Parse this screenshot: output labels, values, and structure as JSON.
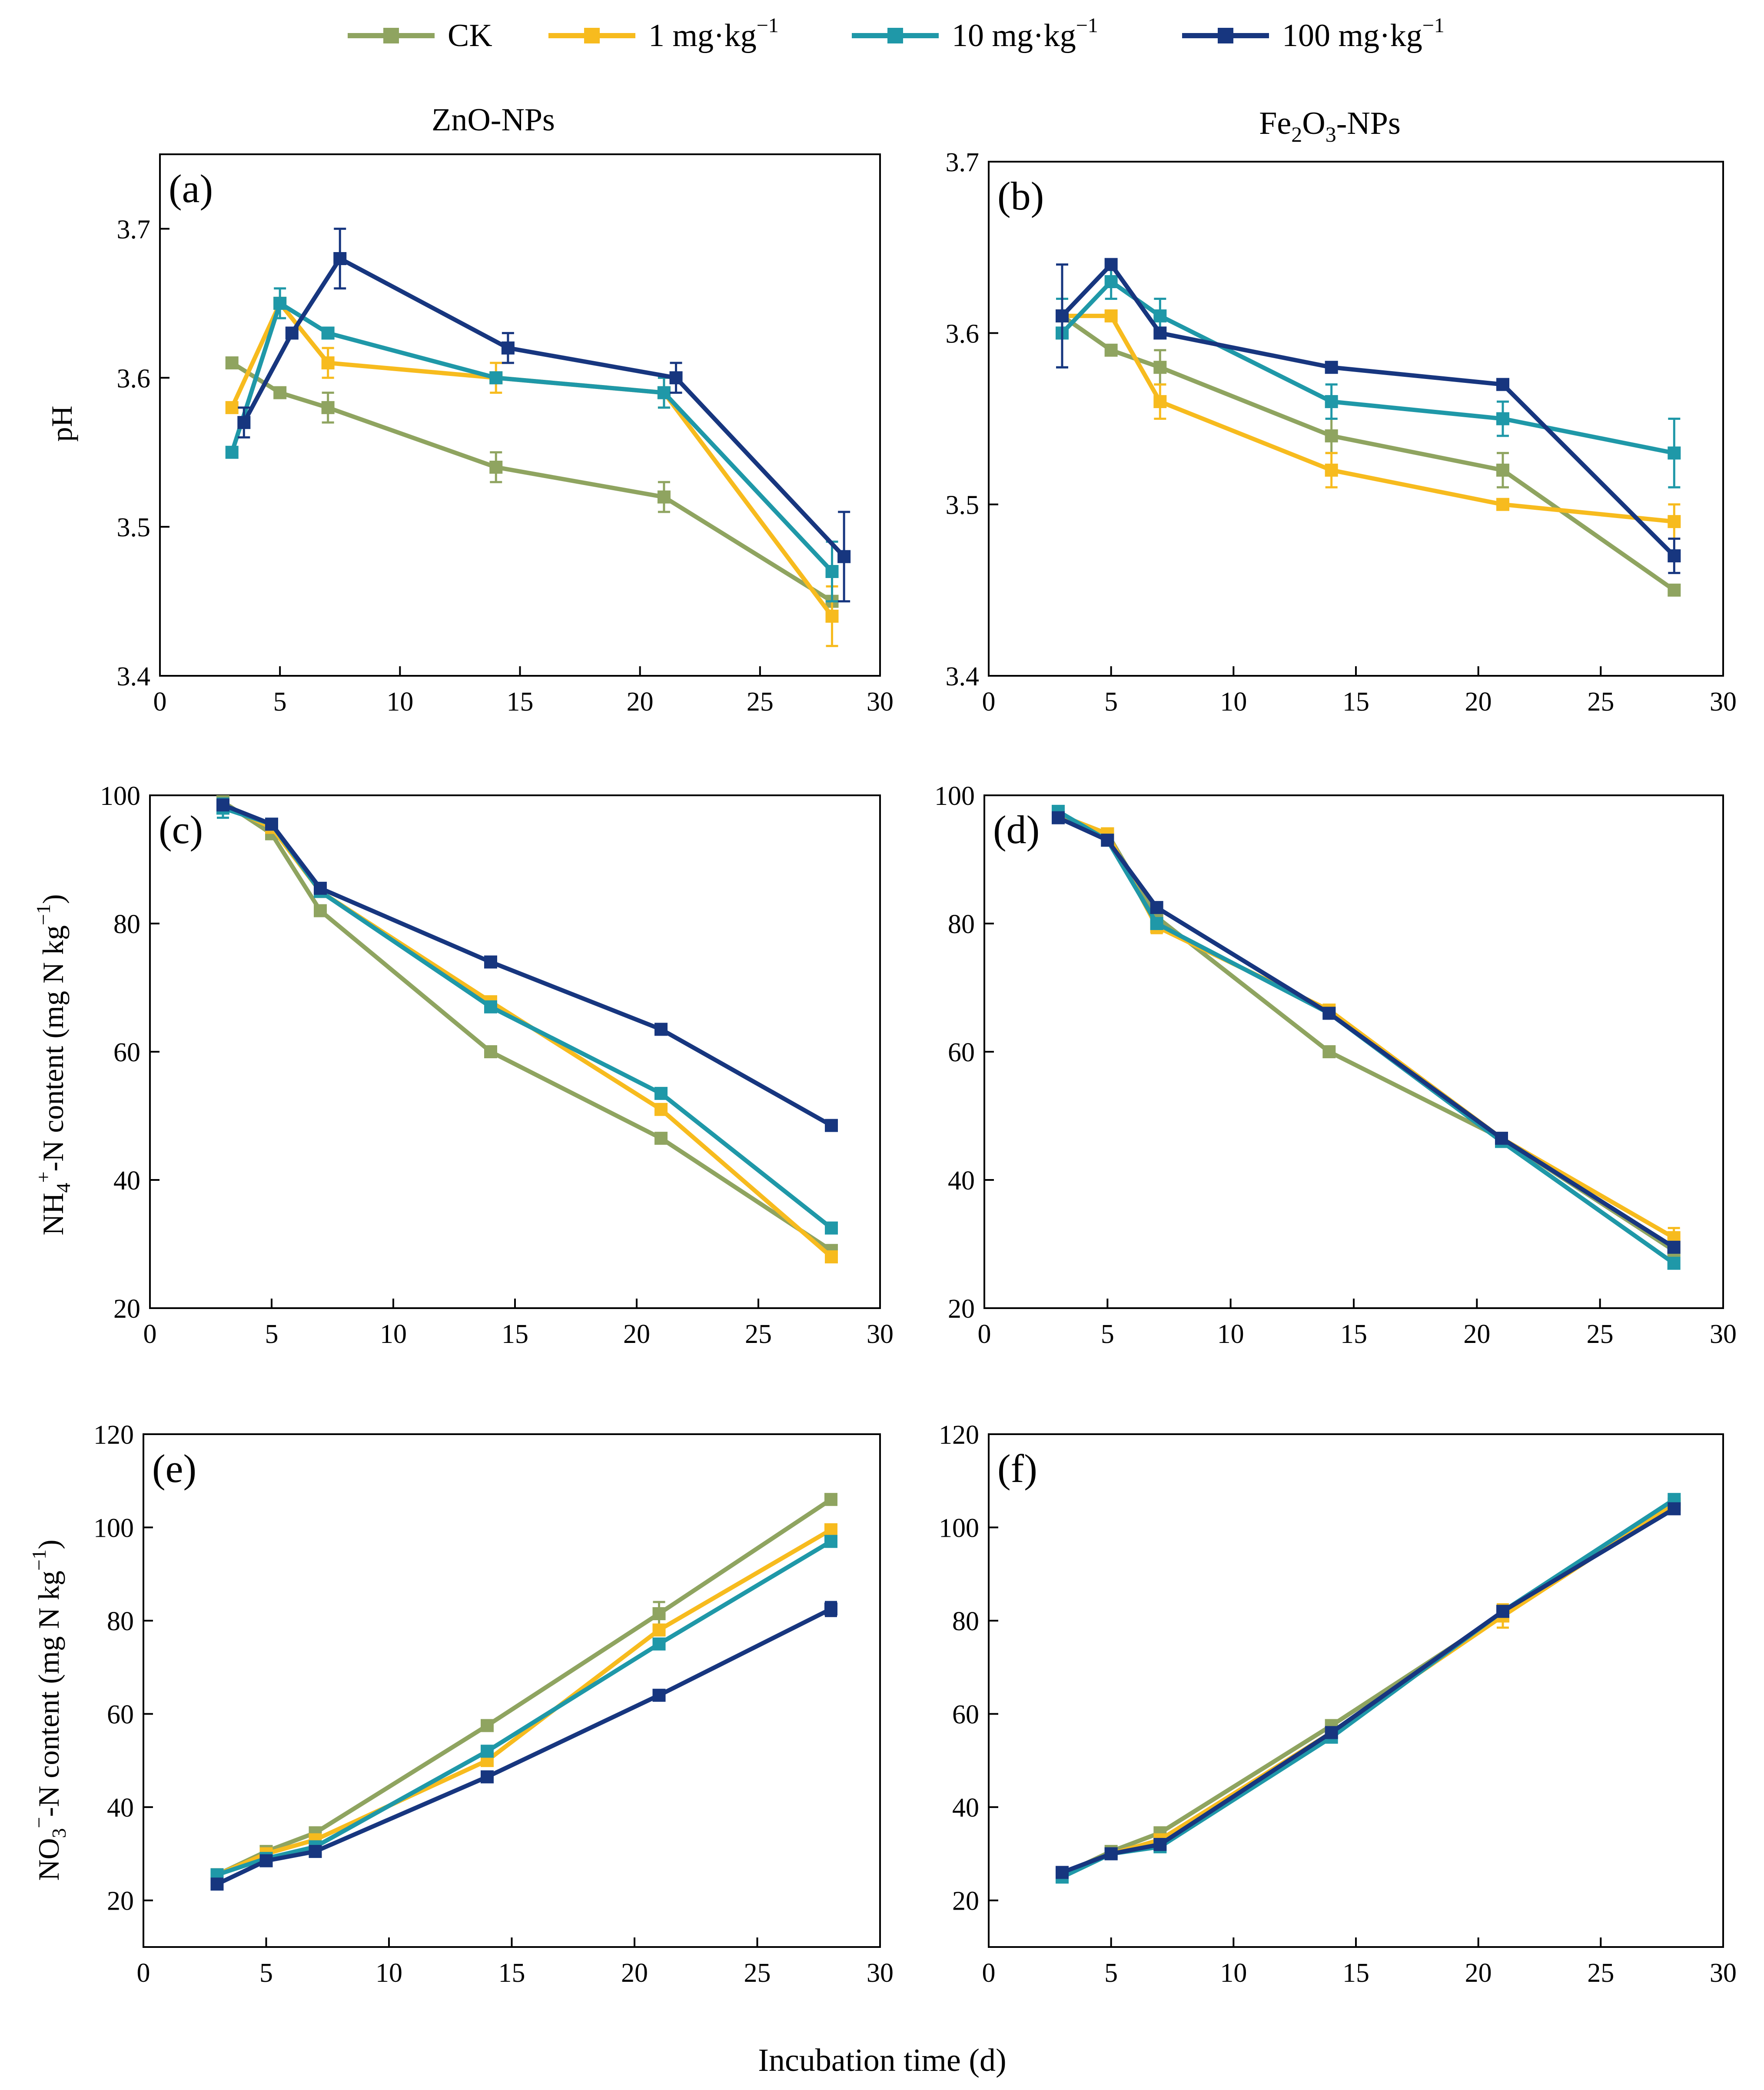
{
  "legend": [
    {
      "key": "ck",
      "label": "CK",
      "unit_exp": "",
      "color": "#8fa460"
    },
    {
      "key": "c1",
      "label": "1 mg·kg",
      "unit_exp": "−1",
      "color": "#f7bb1e"
    },
    {
      "key": "c10",
      "label": "10 mg·kg",
      "unit_exp": "−1",
      "color": "#1f98a8"
    },
    {
      "key": "c100",
      "label": "100 mg·kg",
      "unit_exp": "−1",
      "color": "#17367f"
    }
  ],
  "columns": {
    "left_title": "ZnO-NPs",
    "right_title": {
      "p1": "Fe",
      "s1": "2",
      "p2": "O",
      "s2": "3",
      "p3": "-NPs"
    }
  },
  "x_axis_label": "Incubation time (d)",
  "y_axis_labels": {
    "ph": "pH",
    "nh4": {
      "p1": "NH",
      "sub": "4",
      "sup": "+",
      "p2": "-N content (mg N kg",
      "exp": "−1",
      "p3": ")"
    },
    "no3": {
      "p1": "NO",
      "sub": "3",
      "sup": "−",
      "p2": "-N content (mg N kg",
      "exp": "−1",
      "p3": ")"
    }
  },
  "chart_data": [
    {
      "panel": "(a)",
      "type": "line",
      "title": "ZnO-NPs",
      "xlabel": "Incubation time (d)",
      "ylabel": "pH",
      "xlim": [
        0,
        30
      ],
      "ylim": [
        3.4,
        3.75
      ],
      "xticks": [
        0,
        5,
        10,
        15,
        20,
        25,
        30
      ],
      "yticks": [
        3.4,
        3.5,
        3.6,
        3.7
      ],
      "ytick_decimals": 1,
      "series": [
        {
          "name": "CK",
          "x": [
            3,
            5,
            7,
            14,
            21,
            28
          ],
          "y": [
            3.61,
            3.59,
            3.58,
            3.54,
            3.52,
            3.45
          ],
          "err": [
            0,
            0,
            0.01,
            0.01,
            0.01,
            0
          ]
        },
        {
          "name": "1 mg·kg−1",
          "x": [
            3,
            5,
            7,
            14,
            21,
            28
          ],
          "y": [
            3.58,
            3.65,
            3.61,
            3.6,
            3.59,
            3.44
          ],
          "err": [
            0,
            0,
            0.01,
            0.01,
            0.01,
            0.02
          ]
        },
        {
          "name": "10 mg·kg−1",
          "x": [
            3,
            5,
            7,
            14,
            21,
            28
          ],
          "y": [
            3.55,
            3.65,
            3.63,
            3.6,
            3.59,
            3.47
          ],
          "err": [
            0,
            0.01,
            0,
            0,
            0.01,
            0.02
          ]
        },
        {
          "name": "100 mg·kg−1",
          "x": [
            3.5,
            5.5,
            7.5,
            14.5,
            21.5,
            28.5
          ],
          "y": [
            3.57,
            3.63,
            3.68,
            3.62,
            3.6,
            3.48
          ],
          "err": [
            0.01,
            0,
            0.02,
            0.01,
            0.01,
            0.03
          ]
        }
      ]
    },
    {
      "panel": "(b)",
      "type": "line",
      "title": "Fe2O3-NPs",
      "xlabel": "Incubation time (d)",
      "ylabel": "pH",
      "xlim": [
        0,
        30
      ],
      "ylim": [
        3.4,
        3.7
      ],
      "xticks": [
        0,
        5,
        10,
        15,
        20,
        25,
        30
      ],
      "yticks": [
        3.4,
        3.5,
        3.6,
        3.7
      ],
      "ytick_decimals": 1,
      "series": [
        {
          "name": "CK",
          "x": [
            3,
            5,
            7,
            14,
            21,
            28
          ],
          "y": [
            3.61,
            3.59,
            3.58,
            3.54,
            3.52,
            3.45
          ],
          "err": [
            0,
            0,
            0.01,
            0.01,
            0.01,
            0
          ]
        },
        {
          "name": "1 mg·kg−1",
          "x": [
            3,
            5,
            7,
            14,
            21,
            28
          ],
          "y": [
            3.61,
            3.61,
            3.56,
            3.52,
            3.5,
            3.49
          ],
          "err": [
            0,
            0,
            0.01,
            0.01,
            0,
            0.01
          ]
        },
        {
          "name": "10 mg·kg−1",
          "x": [
            3,
            5,
            7,
            14,
            21,
            28
          ],
          "y": [
            3.6,
            3.63,
            3.61,
            3.56,
            3.55,
            3.53
          ],
          "err": [
            0.02,
            0.01,
            0.01,
            0.01,
            0.01,
            0.02
          ]
        },
        {
          "name": "100 mg·kg−1",
          "x": [
            3,
            5,
            7,
            14,
            21,
            28
          ],
          "y": [
            3.61,
            3.64,
            3.6,
            3.58,
            3.57,
            3.47
          ],
          "err": [
            0.03,
            0,
            0,
            0,
            0,
            0.01
          ]
        }
      ]
    },
    {
      "panel": "(c)",
      "type": "line",
      "title": "ZnO-NPs",
      "xlabel": "Incubation time (d)",
      "ylabel": "NH4+-N content (mg N kg−1)",
      "xlim": [
        0,
        30
      ],
      "ylim": [
        20,
        100
      ],
      "xticks": [
        0,
        5,
        10,
        15,
        20,
        25,
        30
      ],
      "yticks": [
        20,
        40,
        60,
        80,
        100
      ],
      "ytick_decimals": 0,
      "series": [
        {
          "name": "CK",
          "x": [
            3,
            5,
            7,
            14,
            21,
            28
          ],
          "y": [
            99.0,
            94.0,
            82.0,
            60.0,
            46.5,
            29.0
          ],
          "err": [
            0.5,
            0.5,
            0.8,
            0.5,
            0.8,
            0.8
          ]
        },
        {
          "name": "1 mg·kg−1",
          "x": [
            3,
            5,
            7,
            14,
            21,
            28
          ],
          "y": [
            98.5,
            95.0,
            85.0,
            67.8,
            51.0,
            28.0
          ],
          "err": [
            0.5,
            0.5,
            0.8,
            0.8,
            0.8,
            0.8
          ]
        },
        {
          "name": "10 mg·kg−1",
          "x": [
            3,
            5,
            7,
            14,
            21,
            28
          ],
          "y": [
            98.0,
            95.5,
            85.0,
            67.0,
            53.5,
            32.5
          ],
          "err": [
            1.5,
            0.5,
            0.5,
            0.5,
            0.5,
            0.8
          ]
        },
        {
          "name": "100 mg·kg−1",
          "x": [
            3,
            5,
            7,
            14,
            21,
            28
          ],
          "y": [
            98.5,
            95.5,
            85.5,
            74.0,
            63.5,
            48.5
          ],
          "err": [
            0.5,
            0.5,
            0.5,
            0.5,
            0.5,
            0.8
          ]
        }
      ]
    },
    {
      "panel": "(d)",
      "type": "line",
      "title": "Fe2O3-NPs",
      "xlabel": "Incubation time (d)",
      "ylabel": "NH4+-N content (mg N kg−1)",
      "xlim": [
        0,
        30
      ],
      "ylim": [
        20,
        100
      ],
      "xticks": [
        0,
        5,
        10,
        15,
        20,
        25,
        30
      ],
      "yticks": [
        20,
        40,
        60,
        80,
        100
      ],
      "ytick_decimals": 0,
      "series": [
        {
          "name": "CK",
          "x": [
            3,
            5,
            7,
            14,
            21,
            28
          ],
          "y": [
            97.0,
            94.0,
            81.0,
            60.0,
            46.5,
            29.0
          ],
          "err": [
            0.5,
            0.5,
            0.8,
            0.5,
            0.5,
            0.8
          ]
        },
        {
          "name": "1 mg·kg−1",
          "x": [
            3,
            5,
            7,
            14,
            21,
            28
          ],
          "y": [
            97.0,
            94.0,
            79.5,
            66.5,
            46.5,
            31.0
          ],
          "err": [
            0.5,
            0.5,
            1.0,
            0.5,
            0.5,
            1.5
          ]
        },
        {
          "name": "10 mg·kg−1",
          "x": [
            3,
            5,
            7,
            14,
            21,
            28
          ],
          "y": [
            97.5,
            93.0,
            80.0,
            66.0,
            46.0,
            27.0
          ],
          "err": [
            0.8,
            0.5,
            0.8,
            0.5,
            0.5,
            0.8
          ]
        },
        {
          "name": "100 mg·kg−1",
          "x": [
            3,
            5,
            7,
            14,
            21,
            28
          ],
          "y": [
            96.5,
            93.0,
            82.5,
            66.0,
            46.5,
            29.5
          ],
          "err": [
            0.5,
            0.5,
            0.5,
            0.5,
            0.5,
            0.8
          ]
        }
      ]
    },
    {
      "panel": "(e)",
      "type": "line",
      "title": "ZnO-NPs",
      "xlabel": "Incubation time (d)",
      "ylabel": "NO3−-N content (mg N kg−1)",
      "xlim": [
        0,
        30
      ],
      "ylim": [
        10,
        120
      ],
      "xticks": [
        0,
        5,
        10,
        15,
        20,
        25,
        30
      ],
      "yticks": [
        20,
        40,
        60,
        80,
        100,
        120
      ],
      "ytick_decimals": 0,
      "series": [
        {
          "name": "CK",
          "x": [
            3,
            5,
            7,
            14,
            21,
            28
          ],
          "y": [
            25.5,
            30.5,
            34.5,
            57.5,
            81.5,
            106.0
          ],
          "err": [
            0.5,
            0.5,
            0.8,
            0.5,
            2.5,
            0.8
          ]
        },
        {
          "name": "1 mg·kg−1",
          "x": [
            3,
            5,
            7,
            14,
            21,
            28
          ],
          "y": [
            25.5,
            30.0,
            33.0,
            50.0,
            78.0,
            99.5
          ],
          "err": [
            0.5,
            0.5,
            0.8,
            0.8,
            0.8,
            0.8
          ]
        },
        {
          "name": "10 mg·kg−1",
          "x": [
            3,
            5,
            7,
            14,
            21,
            28
          ],
          "y": [
            25.5,
            29.0,
            31.5,
            52.0,
            75.0,
            97.0
          ],
          "err": [
            0.5,
            0.5,
            0.5,
            0.5,
            0.5,
            0.8
          ]
        },
        {
          "name": "100 mg·kg−1",
          "x": [
            3,
            5,
            7,
            14,
            21,
            28
          ],
          "y": [
            23.5,
            28.5,
            30.5,
            46.5,
            64.0,
            82.5
          ],
          "err": [
            0.5,
            0.5,
            0.5,
            0.5,
            0.5,
            1.5
          ]
        }
      ]
    },
    {
      "panel": "(f)",
      "type": "line",
      "title": "Fe2O3-NPs",
      "xlabel": "Incubation time (d)",
      "ylabel": "NO3−-N content (mg N kg−1)",
      "xlim": [
        0,
        30
      ],
      "ylim": [
        10,
        120
      ],
      "xticks": [
        0,
        5,
        10,
        15,
        20,
        25,
        30
      ],
      "yticks": [
        20,
        40,
        60,
        80,
        100,
        120
      ],
      "ytick_decimals": 0,
      "series": [
        {
          "name": "CK",
          "x": [
            3,
            5,
            7,
            14,
            21,
            28
          ],
          "y": [
            25.5,
            30.5,
            34.5,
            57.5,
            81.5,
            105.0
          ],
          "err": [
            0.5,
            0.5,
            0.8,
            0.5,
            1.5,
            0.8
          ]
        },
        {
          "name": "1 mg·kg−1",
          "x": [
            3,
            5,
            7,
            14,
            21,
            28
          ],
          "y": [
            25.5,
            30.0,
            33.0,
            56.0,
            81.0,
            105.0
          ],
          "err": [
            0.5,
            0.5,
            0.8,
            0.8,
            2.5,
            0.8
          ]
        },
        {
          "name": "10 mg·kg−1",
          "x": [
            3,
            5,
            7,
            14,
            21,
            28
          ],
          "y": [
            25.0,
            30.0,
            31.5,
            55.0,
            82.0,
            106.0
          ],
          "err": [
            0.5,
            0.5,
            0.5,
            0.5,
            0.8,
            0.8
          ]
        },
        {
          "name": "100 mg·kg−1",
          "x": [
            3,
            5,
            7,
            14,
            21,
            28
          ],
          "y": [
            26.0,
            30.0,
            32.0,
            56.0,
            82.0,
            104.0
          ],
          "err": [
            0.5,
            0.5,
            0.5,
            0.5,
            0.8,
            0.8
          ]
        }
      ]
    }
  ]
}
